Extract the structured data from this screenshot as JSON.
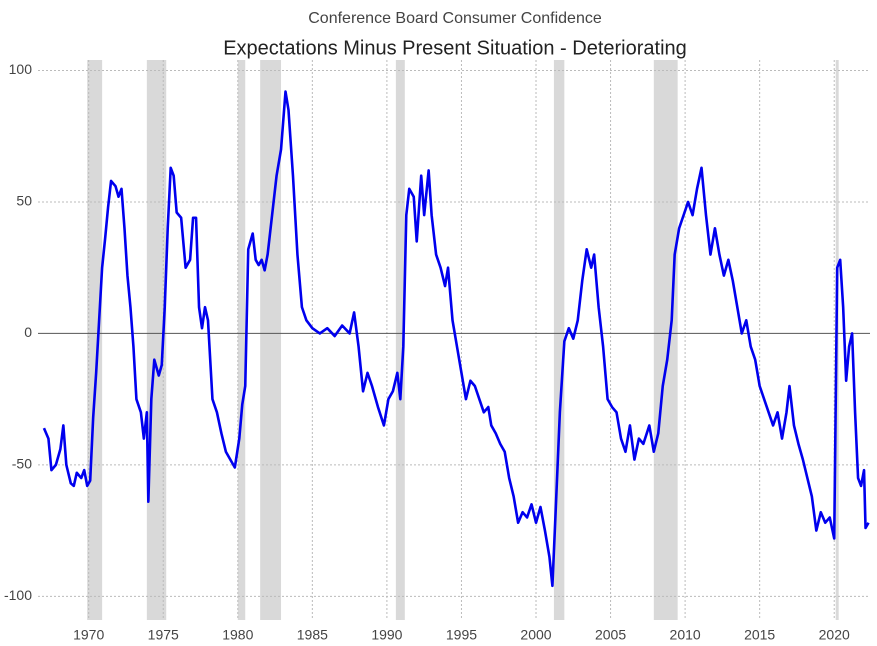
{
  "chart_data": {
    "type": "line",
    "title": "Conference Board Consumer Confidence",
    "subtitle": "Expectations Minus Present Situation - Deteriorating",
    "color": "#0000ee",
    "shade_color": "#d9d9d9",
    "grid": true,
    "xlim": [
      1966.6,
      2022.4
    ],
    "ylim": [
      -109,
      104
    ],
    "xticks": [
      1970,
      1975,
      1980,
      1985,
      1990,
      1995,
      2000,
      2005,
      2010,
      2015,
      2020
    ],
    "yticks": [
      -100,
      -50,
      0,
      50,
      100
    ],
    "shaded_periods": [
      [
        1969.9,
        1970.9
      ],
      [
        1973.9,
        1975.2
      ],
      [
        1980.0,
        1980.5
      ],
      [
        1981.5,
        1982.9
      ],
      [
        1990.6,
        1991.2
      ],
      [
        2001.2,
        2001.9
      ],
      [
        2007.9,
        2009.5
      ],
      [
        2020.1,
        2020.3
      ]
    ],
    "x": [
      1967.0,
      1967.3,
      1967.5,
      1967.8,
      1968.1,
      1968.3,
      1968.5,
      1968.8,
      1969.0,
      1969.2,
      1969.5,
      1969.7,
      1969.9,
      1970.1,
      1970.3,
      1970.5,
      1970.7,
      1970.9,
      1971.1,
      1971.3,
      1971.5,
      1971.8,
      1972.0,
      1972.2,
      1972.4,
      1972.6,
      1972.8,
      1973.0,
      1973.2,
      1973.5,
      1973.7,
      1973.9,
      1974.0,
      1974.2,
      1974.4,
      1974.7,
      1974.9,
      1975.1,
      1975.3,
      1975.5,
      1975.7,
      1975.9,
      1976.2,
      1976.5,
      1976.8,
      1977.0,
      1977.2,
      1977.4,
      1977.6,
      1977.8,
      1978.0,
      1978.3,
      1978.6,
      1978.9,
      1979.2,
      1979.5,
      1979.8,
      1980.1,
      1980.3,
      1980.5,
      1980.7,
      1981.0,
      1981.2,
      1981.4,
      1981.6,
      1981.8,
      1982.0,
      1982.3,
      1982.6,
      1982.9,
      1983.2,
      1983.4,
      1983.7,
      1984.0,
      1984.3,
      1984.6,
      1985.0,
      1985.5,
      1986.0,
      1986.5,
      1987.0,
      1987.5,
      1987.8,
      1988.1,
      1988.4,
      1988.7,
      1989.0,
      1989.4,
      1989.8,
      1990.1,
      1990.4,
      1990.7,
      1990.9,
      1991.1,
      1991.3,
      1991.5,
      1991.8,
      1992.0,
      1992.3,
      1992.5,
      1992.8,
      1993.0,
      1993.3,
      1993.6,
      1993.9,
      1994.1,
      1994.4,
      1994.7,
      1995.0,
      1995.3,
      1995.6,
      1995.9,
      1996.2,
      1996.5,
      1996.8,
      1997.0,
      1997.3,
      1997.6,
      1997.9,
      1998.2,
      1998.5,
      1998.8,
      1999.1,
      1999.4,
      1999.7,
      2000.0,
      2000.3,
      2000.6,
      2000.9,
      2001.1,
      2001.3,
      2001.6,
      2001.9,
      2002.2,
      2002.5,
      2002.8,
      2003.1,
      2003.4,
      2003.7,
      2003.9,
      2004.2,
      2004.5,
      2004.8,
      2005.1,
      2005.4,
      2005.7,
      2006.0,
      2006.3,
      2006.6,
      2006.9,
      2007.2,
      2007.6,
      2007.9,
      2008.2,
      2008.5,
      2008.8,
      2009.1,
      2009.3,
      2009.6,
      2009.9,
      2010.2,
      2010.5,
      2010.8,
      2011.1,
      2011.4,
      2011.7,
      2012.0,
      2012.3,
      2012.6,
      2012.9,
      2013.2,
      2013.5,
      2013.8,
      2014.1,
      2014.4,
      2014.7,
      2015.0,
      2015.3,
      2015.6,
      2015.9,
      2016.2,
      2016.5,
      2016.8,
      2017.0,
      2017.3,
      2017.6,
      2017.9,
      2018.2,
      2018.5,
      2018.8,
      2019.1,
      2019.4,
      2019.7,
      2020.0,
      2020.2,
      2020.4,
      2020.6,
      2020.8,
      2021.0,
      2021.2,
      2021.4,
      2021.6,
      2021.8,
      2022.0,
      2022.1,
      2022.3
    ],
    "values": [
      -36,
      -40,
      -52,
      -50,
      -44,
      -35,
      -50,
      -57,
      -58,
      -53,
      -55,
      -52,
      -58,
      -56,
      -32,
      -15,
      5,
      25,
      36,
      48,
      58,
      56,
      52,
      55,
      40,
      22,
      10,
      -5,
      -25,
      -30,
      -40,
      -30,
      -64,
      -25,
      -10,
      -16,
      -12,
      10,
      40,
      63,
      60,
      46,
      44,
      25,
      28,
      44,
      44,
      10,
      2,
      10,
      5,
      -25,
      -30,
      -38,
      -45,
      -48,
      -51,
      -40,
      -27,
      -20,
      32,
      38,
      28,
      26,
      28,
      24,
      30,
      45,
      60,
      70,
      92,
      85,
      60,
      30,
      10,
      5,
      2,
      0,
      2,
      -1,
      3,
      0,
      8,
      -5,
      -22,
      -15,
      -20,
      -28,
      -35,
      -25,
      -22,
      -15,
      -25,
      -5,
      45,
      55,
      52,
      35,
      60,
      45,
      62,
      45,
      30,
      25,
      18,
      25,
      5,
      -5,
      -15,
      -25,
      -18,
      -20,
      -25,
      -30,
      -28,
      -35,
      -38,
      -42,
      -45,
      -55,
      -62,
      -72,
      -68,
      -70,
      -65,
      -72,
      -66,
      -75,
      -85,
      -96,
      -70,
      -30,
      -3,
      2,
      -2,
      5,
      20,
      32,
      25,
      30,
      10,
      -5,
      -25,
      -28,
      -30,
      -40,
      -45,
      -35,
      -48,
      -40,
      -42,
      -35,
      -45,
      -38,
      -20,
      -10,
      5,
      30,
      40,
      45,
      50,
      45,
      55,
      63,
      45,
      30,
      40,
      30,
      22,
      28,
      20,
      10,
      0,
      5,
      -5,
      -10,
      -20,
      -25,
      -30,
      -35,
      -30,
      -40,
      -30,
      -20,
      -35,
      -42,
      -48,
      -55,
      -62,
      -75,
      -68,
      -72,
      -70,
      -78,
      25,
      28,
      10,
      -18,
      -5,
      0,
      -30,
      -55,
      -58,
      -52,
      -74,
      -72
    ]
  }
}
